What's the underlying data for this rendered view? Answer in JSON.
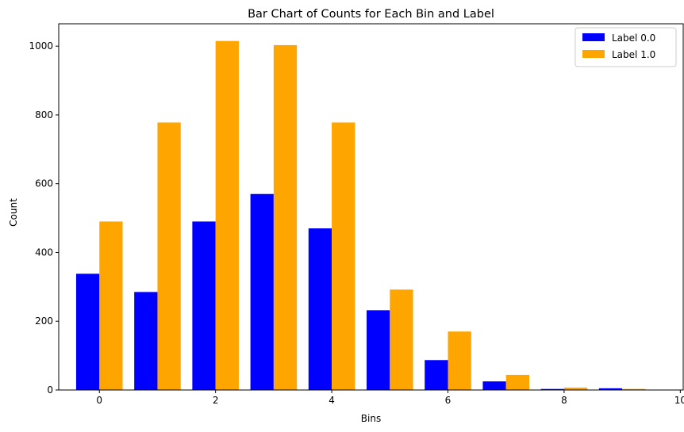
{
  "chart_data": {
    "type": "bar",
    "title": "Bar Chart of Counts for Each Bin and Label",
    "xlabel": "Bins",
    "ylabel": "Count",
    "categories": [
      0,
      1,
      2,
      3,
      4,
      5,
      6,
      7,
      8,
      9
    ],
    "xlim": [
      -0.7,
      10.05
    ],
    "ylim": [
      0,
      1065
    ],
    "xticks": [
      0,
      2,
      4,
      6,
      8,
      10
    ],
    "yticks": [
      0,
      200,
      400,
      600,
      800,
      1000
    ],
    "grid": false,
    "legend_position": "top-right",
    "series": [
      {
        "name": "Label 0.0",
        "color": "#0000ff",
        "values": [
          338,
          285,
          490,
          570,
          470,
          232,
          87,
          25,
          3,
          5
        ]
      },
      {
        "name": "Label 1.0",
        "color": "#ffa500",
        "values": [
          490,
          778,
          1015,
          1003,
          778,
          292,
          170,
          44,
          7,
          3
        ]
      }
    ]
  }
}
